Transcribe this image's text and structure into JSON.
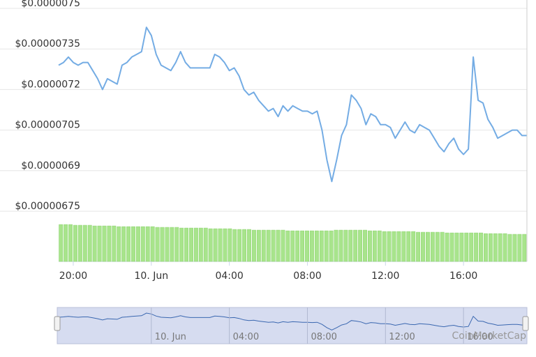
{
  "chart_data": [
    {
      "type": "line",
      "color": "#74ace4",
      "grid": true,
      "watermark": "CoinMarketCap",
      "categories": [
        null,
        null,
        null,
        "20:00",
        null,
        null,
        null,
        null,
        null,
        null,
        null,
        null,
        null,
        null,
        null,
        null,
        null,
        null,
        null,
        "10. Jun",
        null,
        null,
        null,
        null,
        null,
        null,
        null,
        null,
        null,
        null,
        null,
        null,
        null,
        null,
        null,
        "04:00",
        null,
        null,
        null,
        null,
        null,
        null,
        null,
        null,
        null,
        null,
        null,
        null,
        null,
        null,
        null,
        "08:00",
        null,
        null,
        null,
        null,
        null,
        null,
        null,
        null,
        null,
        null,
        null,
        null,
        null,
        null,
        null,
        "12:00",
        null,
        null,
        null,
        null,
        null,
        null,
        null,
        null,
        null,
        null,
        null,
        null,
        null,
        null,
        null,
        "16:00",
        null,
        null,
        null,
        null,
        null,
        null,
        null,
        null,
        null,
        null,
        null,
        null,
        null
      ],
      "values": [
        7.29e-06,
        7.3e-06,
        7.32e-06,
        7.3e-06,
        7.29e-06,
        7.3e-06,
        7.3e-06,
        7.27e-06,
        7.24e-06,
        7.2e-06,
        7.24e-06,
        7.23e-06,
        7.22e-06,
        7.29e-06,
        7.3e-06,
        7.32e-06,
        7.33e-06,
        7.34e-06,
        7.43e-06,
        7.4e-06,
        7.33e-06,
        7.29e-06,
        7.28e-06,
        7.27e-06,
        7.3e-06,
        7.34e-06,
        7.3e-06,
        7.28e-06,
        7.28e-06,
        7.28e-06,
        7.28e-06,
        7.28e-06,
        7.33e-06,
        7.32e-06,
        7.3e-06,
        7.27e-06,
        7.28e-06,
        7.25e-06,
        7.2e-06,
        7.18e-06,
        7.19e-06,
        7.16e-06,
        7.14e-06,
        7.12e-06,
        7.13e-06,
        7.1e-06,
        7.14e-06,
        7.12e-06,
        7.14e-06,
        7.13e-06,
        7.12e-06,
        7.12e-06,
        7.11e-06,
        7.12e-06,
        7.05e-06,
        6.94e-06,
        6.86e-06,
        6.94e-06,
        7.03e-06,
        7.07e-06,
        7.18e-06,
        7.16e-06,
        7.13e-06,
        7.07e-06,
        7.11e-06,
        7.1e-06,
        7.07e-06,
        7.07e-06,
        7.06e-06,
        7.02e-06,
        7.05e-06,
        7.08e-06,
        7.05e-06,
        7.04e-06,
        7.07e-06,
        7.06e-06,
        7.05e-06,
        7.02e-06,
        6.99e-06,
        6.97e-06,
        7e-06,
        7.02e-06,
        6.98e-06,
        6.96e-06,
        6.98e-06,
        7.32e-06,
        7.16e-06,
        7.15e-06,
        7.09e-06,
        7.06e-06,
        7.02e-06,
        7.03e-06,
        7.04e-06,
        7.05e-06,
        7.05e-06,
        7.03e-06,
        7.03e-06
      ],
      "ylim": [
        6.75e-06,
        7.5e-06
      ],
      "yticks": [
        {
          "value": 6.75e-06,
          "label": "$0.00000675"
        },
        {
          "value": 6.9e-06,
          "label": "$0.0000069"
        },
        {
          "value": 7.05e-06,
          "label": "$0.00000705"
        },
        {
          "value": 7.2e-06,
          "label": "$0.0000072"
        },
        {
          "value": 7.35e-06,
          "label": "$0.00000735"
        },
        {
          "value": 7.5e-06,
          "label": "$0.0000075"
        }
      ]
    },
    {
      "type": "bar",
      "color": "#a8e48c",
      "values": [
        53,
        53,
        53,
        52,
        52,
        52,
        52,
        51,
        51,
        51,
        51,
        51,
        50,
        50,
        50,
        50,
        50,
        50,
        50,
        50,
        49,
        49,
        49,
        49,
        49,
        48,
        48,
        48,
        48,
        48,
        48,
        47,
        47,
        47,
        47,
        47,
        46,
        46,
        46,
        46,
        45,
        45,
        45,
        45,
        45,
        45,
        45,
        44,
        44,
        44,
        44,
        44,
        44,
        44,
        44,
        44,
        44,
        45,
        45,
        45,
        45,
        45,
        45,
        45,
        44,
        44,
        44,
        43,
        43,
        43,
        43,
        43,
        43,
        43,
        42,
        42,
        42,
        42,
        42,
        42,
        41,
        41,
        41,
        41,
        41,
        41,
        41,
        41,
        40,
        40,
        40,
        40,
        40,
        39,
        39,
        39,
        39
      ],
      "ylim": [
        0,
        53
      ]
    }
  ]
}
